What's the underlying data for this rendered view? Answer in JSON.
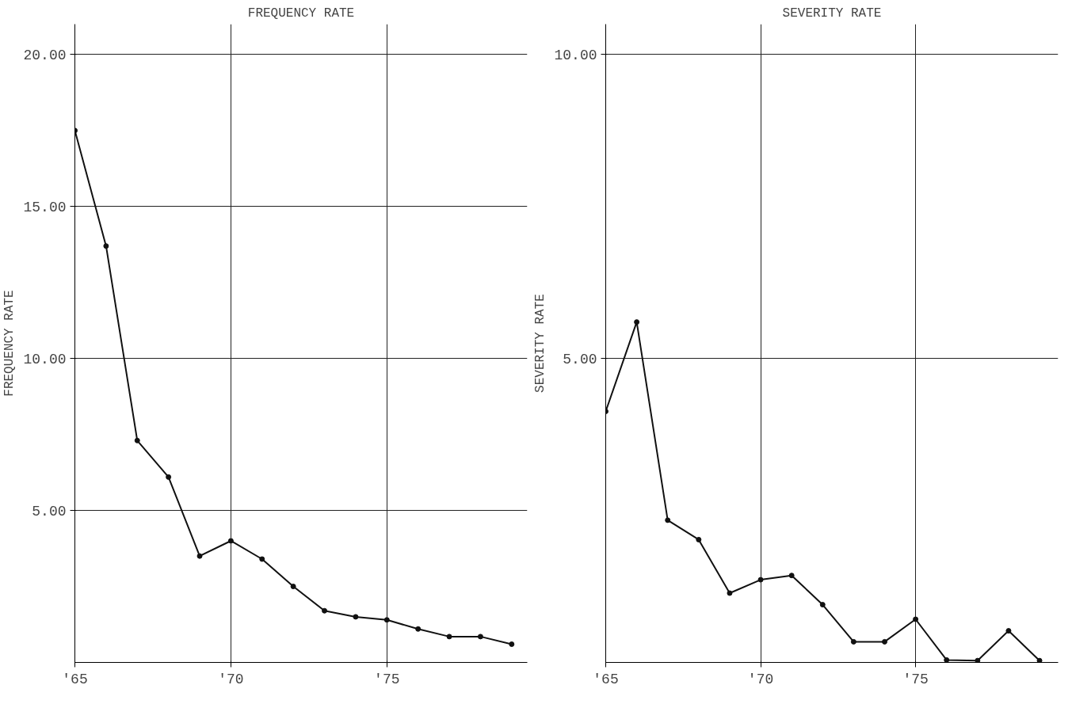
{
  "chart_data": [
    {
      "type": "line",
      "title": "FREQUENCY RATE",
      "ylabel": "FREQUENCY RATE",
      "x": [
        65,
        66,
        67,
        68,
        69,
        70,
        71,
        72,
        73,
        74,
        75,
        76,
        77,
        78,
        79
      ],
      "series": [
        {
          "color": "#111111",
          "values": [
            17.5,
            13.7,
            7.3,
            6.1,
            3.5,
            4.0,
            3.4,
            2.5,
            1.7,
            1.5,
            1.4,
            1.1,
            0.85,
            0.85,
            0.6
          ]
        }
      ],
      "xlim": [
        65,
        79.5
      ],
      "xticks": [
        {
          "value": 65,
          "label": "'65"
        },
        {
          "value": 70,
          "label": "'70"
        },
        {
          "value": 75,
          "label": "'75"
        }
      ],
      "ylim": [
        0,
        21
      ],
      "yticks": [
        {
          "value": 5,
          "label": "5.00"
        },
        {
          "value": 10,
          "label": "10.00"
        },
        {
          "value": 15,
          "label": "15.00"
        },
        {
          "value": 20,
          "label": "20.00"
        }
      ],
      "grid": true,
      "marker": "circle",
      "line_style": "solid"
    },
    {
      "type": "line",
      "title": "SEVERITY RATE",
      "ylabel": "SEVERITY RATE",
      "x": [
        65,
        66,
        67,
        68,
        69,
        70,
        71,
        72,
        73,
        74,
        75,
        76,
        77,
        78,
        79
      ],
      "series": [
        {
          "color": "#111111",
          "values": [
            4.13,
            5.6,
            2.34,
            2.02,
            1.14,
            1.36,
            1.43,
            0.95,
            0.34,
            0.34,
            0.71,
            0.04,
            0.03,
            0.52,
            0.03
          ]
        }
      ],
      "xlim": [
        65,
        79.6
      ],
      "xticks": [
        {
          "value": 65,
          "label": "'65"
        },
        {
          "value": 70,
          "label": "'70"
        },
        {
          "value": 75,
          "label": "'75"
        }
      ],
      "ylim": [
        0,
        10.5
      ],
      "yticks": [
        {
          "value": 5,
          "label": "5.00"
        },
        {
          "value": 10,
          "label": "10.00"
        }
      ],
      "grid": true,
      "marker": "circle",
      "line_style": "solid"
    }
  ]
}
